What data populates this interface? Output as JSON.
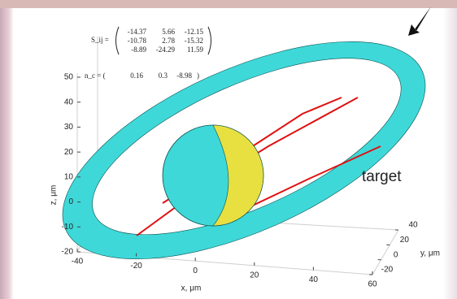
{
  "chart_data": {
    "type": "surface3d",
    "matrix_label": "S_ij =",
    "matrix": [
      [
        -14.37,
        5.66,
        -12.15
      ],
      [
        -10.78,
        2.78,
        -15.32
      ],
      [
        -8.89,
        -24.29,
        11.59
      ]
    ],
    "vector_label": "n_c = (",
    "vector": [
      0.16,
      0.3,
      -8.98
    ],
    "vector_close": ")",
    "xlabel": "x, μm",
    "ylabel": "y, μm",
    "zlabel": "z, μm",
    "xlim": [
      -40,
      60
    ],
    "xticks": [
      -40,
      -20,
      0,
      20,
      40,
      60
    ],
    "ylim": [
      -20,
      40
    ],
    "yticks": [
      -20,
      0,
      20,
      40
    ],
    "zlim": [
      -20,
      50
    ],
    "zticks": [
      -20,
      -10,
      0,
      10,
      20,
      30,
      40,
      50
    ],
    "annotation": "target"
  }
}
